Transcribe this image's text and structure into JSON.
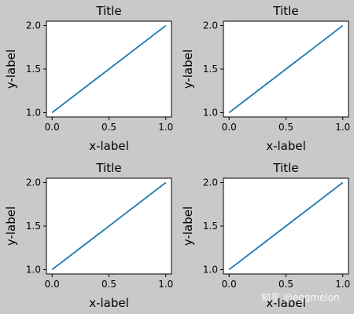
{
  "chart_data": [
    {
      "type": "line",
      "title": "Title",
      "xlabel": "x-label",
      "ylabel": "y-label",
      "x": [
        0,
        1
      ],
      "series": [
        {
          "values": [
            1,
            2
          ],
          "color": "#1f77b4"
        }
      ],
      "xlim": [
        -0.05,
        1.05
      ],
      "ylim": [
        0.95,
        2.05
      ],
      "xticks": [
        0.0,
        0.5,
        1.0
      ],
      "xtick_labels": [
        "0.0",
        "0.5",
        "1.0"
      ],
      "yticks": [
        1.0,
        1.5,
        2.0
      ],
      "ytick_labels": [
        "1.0",
        "1.5",
        "2.0"
      ],
      "grid": false
    },
    {
      "type": "line",
      "title": "Title",
      "xlabel": "x-label",
      "ylabel": "y-label",
      "x": [
        0,
        1
      ],
      "series": [
        {
          "values": [
            1,
            2
          ],
          "color": "#1f77b4"
        }
      ],
      "xlim": [
        -0.05,
        1.05
      ],
      "ylim": [
        0.95,
        2.05
      ],
      "xticks": [
        0.0,
        0.5,
        1.0
      ],
      "xtick_labels": [
        "0.0",
        "0.5",
        "1.0"
      ],
      "yticks": [
        1.0,
        1.5,
        2.0
      ],
      "ytick_labels": [
        "1.0",
        "1.5",
        "2.0"
      ],
      "grid": false
    },
    {
      "type": "line",
      "title": "Title",
      "xlabel": "x-label",
      "ylabel": "y-label",
      "x": [
        0,
        1
      ],
      "series": [
        {
          "values": [
            1,
            2
          ],
          "color": "#1f77b4"
        }
      ],
      "xlim": [
        -0.05,
        1.05
      ],
      "ylim": [
        0.95,
        2.05
      ],
      "xticks": [
        0.0,
        0.5,
        1.0
      ],
      "xtick_labels": [
        "0.0",
        "0.5",
        "1.0"
      ],
      "yticks": [
        1.0,
        1.5,
        2.0
      ],
      "ytick_labels": [
        "1.0",
        "1.5",
        "2.0"
      ],
      "grid": false
    },
    {
      "type": "line",
      "title": "Title",
      "xlabel": "x-label",
      "ylabel": "y-label",
      "x": [
        0,
        1
      ],
      "series": [
        {
          "values": [
            1,
            2
          ],
          "color": "#1f77b4"
        }
      ],
      "xlim": [
        -0.05,
        1.05
      ],
      "ylim": [
        0.95,
        2.05
      ],
      "xticks": [
        0.0,
        0.5,
        1.0
      ],
      "xtick_labels": [
        "0.0",
        "0.5",
        "1.0"
      ],
      "yticks": [
        1.0,
        1.5,
        2.0
      ],
      "ytick_labels": [
        "1.0",
        "1.5",
        "2.0"
      ],
      "grid": false
    }
  ],
  "watermark": "知乎 @eggmelon",
  "colors": {
    "figure_bg": "#c9c9c9",
    "axes_bg": "#ffffff",
    "line": "#1f77b4"
  }
}
